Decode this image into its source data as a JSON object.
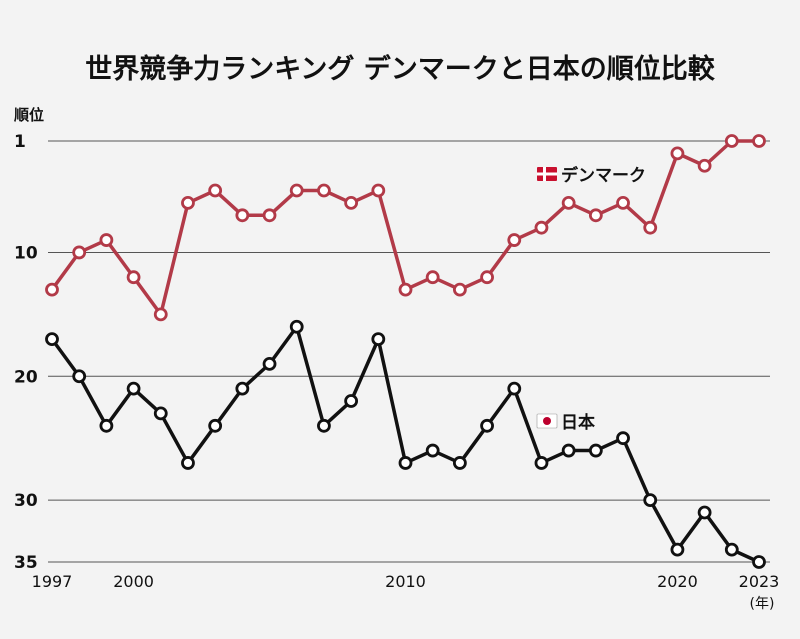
{
  "chart_data": {
    "type": "line",
    "title": "世界競争力ランキング デンマークと日本の順位比較",
    "ylabel": "順位",
    "xunit": "(年)",
    "x": [
      1997,
      1998,
      1999,
      2000,
      2001,
      2002,
      2003,
      2004,
      2005,
      2006,
      2007,
      2008,
      2009,
      2010,
      2011,
      2012,
      2013,
      2014,
      2015,
      2016,
      2017,
      2018,
      2019,
      2020,
      2021,
      2022,
      2023
    ],
    "xticks": [
      1997,
      2000,
      2010,
      2020,
      2023
    ],
    "yticks": [
      1,
      10,
      20,
      30,
      35
    ],
    "ylim": [
      1,
      35
    ],
    "y_inverted": true,
    "grid": true,
    "series": [
      {
        "name": "デンマーク",
        "color": "#b23a48",
        "flag": "denmark-flag-icon",
        "values": [
          13,
          10,
          9,
          12,
          15,
          6,
          5,
          7,
          7,
          5,
          5,
          6,
          5,
          13,
          12,
          13,
          12,
          9,
          8,
          6,
          7,
          6,
          8,
          2,
          3,
          1,
          1
        ]
      },
      {
        "name": "日本",
        "color": "#111111",
        "flag": "japan-flag-icon",
        "values": [
          17,
          20,
          24,
          21,
          23,
          27,
          24,
          21,
          19,
          16,
          24,
          22,
          17,
          27,
          26,
          27,
          24,
          21,
          27,
          26,
          26,
          25,
          30,
          34,
          31,
          34,
          35
        ]
      }
    ]
  }
}
